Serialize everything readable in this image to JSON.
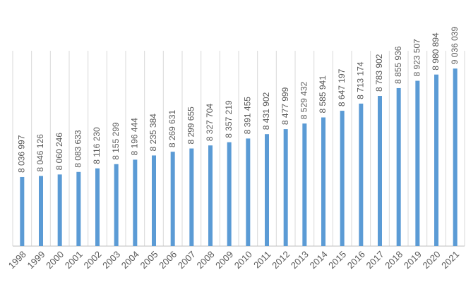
{
  "chart_data": {
    "type": "bar",
    "categories": [
      "1998",
      "1999",
      "2000",
      "2001",
      "2002",
      "2003",
      "2004",
      "2005",
      "2006",
      "2007",
      "2008",
      "2009",
      "2010",
      "2011",
      "2012",
      "2013",
      "2014",
      "2015",
      "2016",
      "2017",
      "2018",
      "2019",
      "2020",
      "2021"
    ],
    "values": [
      8036997,
      8046126,
      8060246,
      8083633,
      8116230,
      8155299,
      8196444,
      8235384,
      8269631,
      8299655,
      8327704,
      8357219,
      8391455,
      8431902,
      8477999,
      8529432,
      8585941,
      8647197,
      8713174,
      8783902,
      8855936,
      8923507,
      8980894,
      9036039
    ],
    "value_labels": [
      "8 036 997",
      "8 046 126",
      "8 060 246",
      "8 083 633",
      "8 116 230",
      "8 155 299",
      "8 196 444",
      "8 235 384",
      "8 269 631",
      "8 299 655",
      "8 327 704",
      "8 357 219",
      "8 391 455",
      "8 431 902",
      "8 477 999",
      "8 529 432",
      "8 585 941",
      "8 647 197",
      "8 713 174",
      "8 783 902",
      "8 855 936",
      "8 923 507",
      "8 980 894",
      "9 036 039"
    ],
    "color": "#5b9bd5",
    "ylim": [
      7400000,
      9200000
    ],
    "grid": true
  }
}
